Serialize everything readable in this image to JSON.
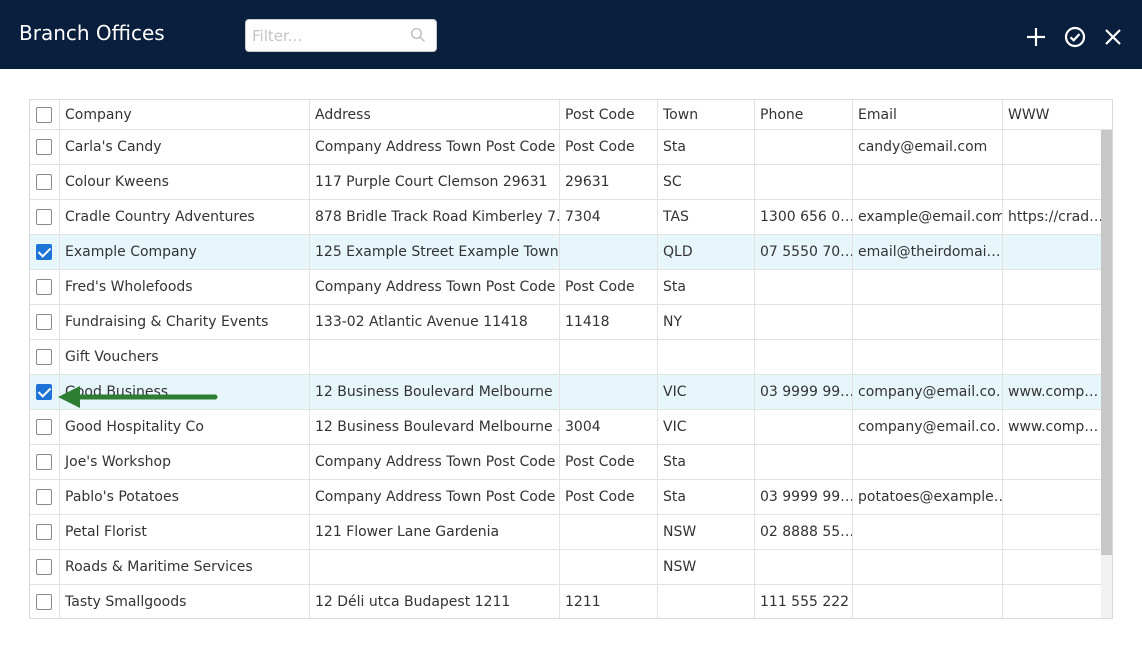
{
  "window": {
    "title": "Branch Offices"
  },
  "filter": {
    "placeholder": "Filter..."
  },
  "icons": {
    "search": "search-icon",
    "add": "plus-icon",
    "confirm": "check-circle-icon",
    "close": "close-icon"
  },
  "colors": {
    "header_bg": "#0a1f3d",
    "selected_row": "#e6f6fb",
    "checkbox_checked": "#1e74d6",
    "annotation_arrow": "#2e7d32"
  },
  "table": {
    "columns": [
      "Company",
      "Address",
      "Post Code",
      "Town",
      "Phone",
      "Email",
      "WWW"
    ],
    "rows": [
      {
        "checked": false,
        "cells": [
          "Carla's Candy",
          "Company Address Town Post Code",
          "Post Code",
          "Sta",
          "",
          "candy@email.com",
          ""
        ]
      },
      {
        "checked": false,
        "cells": [
          "Colour Kweens",
          "117 Purple Court Clemson 29631",
          "29631",
          "SC",
          "",
          "",
          ""
        ]
      },
      {
        "checked": false,
        "cells": [
          "Cradle Country Adventures",
          "878 Bridle Track Road Kimberley 7…",
          "7304",
          "TAS",
          "1300 656 0…",
          "example@email.com",
          "https://crad…"
        ]
      },
      {
        "checked": true,
        "cells": [
          "Example Company",
          "125 Example Street Example Town",
          "",
          "QLD",
          "07 5550 70…",
          "email@theirdomai…",
          ""
        ]
      },
      {
        "checked": false,
        "cells": [
          "Fred's Wholefoods",
          "Company Address Town Post Code",
          "Post Code",
          "Sta",
          "",
          "",
          ""
        ]
      },
      {
        "checked": false,
        "cells": [
          "Fundraising & Charity Events",
          "133-02 Atlantic Avenue 11418",
          "11418",
          "NY",
          "",
          "",
          ""
        ]
      },
      {
        "checked": false,
        "cells": [
          "Gift Vouchers",
          "",
          "",
          "",
          "",
          "",
          ""
        ]
      },
      {
        "checked": true,
        "cells": [
          "Good Business",
          "12 Business Boulevard Melbourne",
          "",
          "VIC",
          "03 9999 99…",
          "company@email.co…",
          "www.comp…"
        ]
      },
      {
        "checked": false,
        "cells": [
          "Good Hospitality Co",
          "12 Business Boulevard Melbourne …",
          "3004",
          "VIC",
          "",
          "company@email.co…",
          "www.comp…"
        ]
      },
      {
        "checked": false,
        "cells": [
          "Joe's Workshop",
          "Company Address Town Post Code",
          "Post Code",
          "Sta",
          "",
          "",
          ""
        ]
      },
      {
        "checked": false,
        "cells": [
          "Pablo's Potatoes",
          "Company Address Town Post Code",
          "Post Code",
          "Sta",
          "03 9999 99…",
          "potatoes@example…",
          ""
        ]
      },
      {
        "checked": false,
        "cells": [
          "Petal Florist",
          "121 Flower Lane Gardenia",
          "",
          "NSW",
          "02 8888 55…",
          "",
          ""
        ]
      },
      {
        "checked": false,
        "cells": [
          "Roads & Maritime Services",
          "",
          "",
          "NSW",
          "",
          "",
          ""
        ]
      },
      {
        "checked": false,
        "cells": [
          "Tasty Smallgoods",
          "12 Déli utca Budapest 1211",
          "1211",
          "",
          "111 555 222",
          "",
          ""
        ]
      }
    ]
  }
}
